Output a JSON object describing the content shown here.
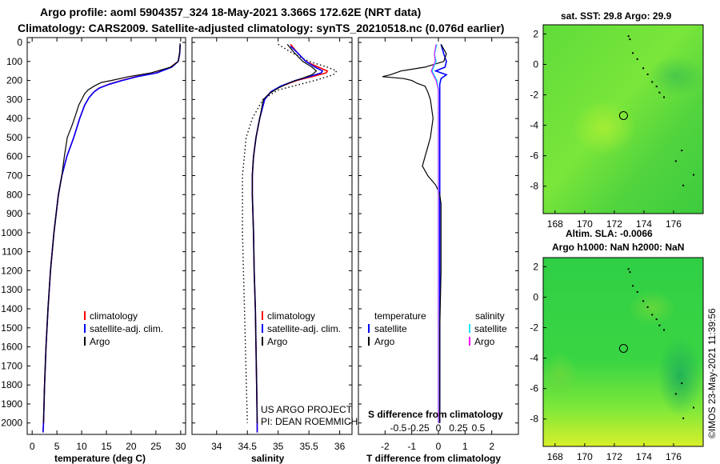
{
  "header": {
    "title_line1": "Argo profile: aoml 5904357_324 18-May-2021 3.366S 172.62E (NRT data)",
    "title_line2": "Climatology: CARS2009. Satellite-adjusted climatology: synTS_20210518.nc (0.076d earlier)"
  },
  "colors": {
    "climatology": "#ff0000",
    "satellite": "#0000ff",
    "argo": "#000000",
    "salinity_satellite": "#00e5ff",
    "salinity_argo": "#ff00ff"
  },
  "depth_ticks": [
    "0",
    "100",
    "200",
    "300",
    "400",
    "500",
    "600",
    "700",
    "800",
    "900",
    "1000",
    "1100",
    "1200",
    "1300",
    "1400",
    "1500",
    "1600",
    "1700",
    "1800",
    "1900",
    "2000"
  ],
  "chart_data": [
    {
      "type": "line",
      "name": "temperature",
      "xlabel": "temperature (deg C)",
      "ylabel": "",
      "xlim": [
        -1,
        31
      ],
      "ylim": [
        2060,
        0
      ],
      "xticks": [
        "0",
        "5",
        "10",
        "15",
        "20",
        "25",
        "30"
      ],
      "legend": [
        "climatology",
        "satellite-adj. clim.",
        "Argo"
      ],
      "series": [
        {
          "name": "climatology",
          "depth": [
            10,
            60,
            100,
            130,
            160,
            180,
            200,
            220,
            240,
            260,
            290,
            330,
            400,
            500,
            600,
            700,
            800,
            1000,
            1200,
            1400,
            1600,
            1800,
            2000,
            2050
          ],
          "values": [
            29.9,
            29.8,
            29.5,
            28.0,
            25.0,
            21.0,
            18.0,
            15.5,
            13.5,
            12.5,
            11.5,
            10.6,
            9.6,
            8.4,
            7.0,
            6.0,
            5.3,
            4.4,
            3.7,
            3.2,
            2.8,
            2.5,
            2.3,
            2.2
          ]
        },
        {
          "name": "satellite-adj. clim.",
          "depth": [
            10,
            60,
            100,
            130,
            160,
            180,
            200,
            220,
            240,
            260,
            290,
            330,
            400,
            500,
            600,
            700,
            800,
            1000,
            1200,
            1400,
            1600,
            1800,
            2000,
            2050
          ],
          "values": [
            29.9,
            29.8,
            29.5,
            28.2,
            25.2,
            21.2,
            18.2,
            15.6,
            13.6,
            12.5,
            11.5,
            10.6,
            9.6,
            8.4,
            7.0,
            6.0,
            5.3,
            4.4,
            3.7,
            3.2,
            2.8,
            2.5,
            2.3,
            2.2
          ]
        },
        {
          "name": "Argo",
          "depth": [
            5,
            50,
            100,
            130,
            160,
            180,
            200,
            210,
            230,
            250,
            270,
            300,
            330,
            380,
            440,
            500,
            600,
            700,
            800,
            1000,
            1200,
            1400,
            1600,
            1800,
            2000
          ],
          "values": [
            29.9,
            29.8,
            29.5,
            28.0,
            24.0,
            19.5,
            16.0,
            14.0,
            12.5,
            11.3,
            10.6,
            10.0,
            9.4,
            8.8,
            8.0,
            7.1,
            6.5,
            6.0,
            5.3,
            4.4,
            3.7,
            3.2,
            2.8,
            2.5,
            2.3
          ]
        }
      ]
    },
    {
      "type": "line",
      "name": "salinity",
      "xlabel": "salinity",
      "xlim": [
        33.6,
        36.2
      ],
      "ylim": [
        2060,
        0
      ],
      "xticks": [
        "34",
        "34.5",
        "35",
        "35.5",
        "36"
      ],
      "legend": [
        "climatology",
        "satellite-adj. clim.",
        "Argo"
      ],
      "annotation": [
        "US ARGO PROJECT",
        "PI: DEAN ROEMMICH"
      ],
      "series": [
        {
          "name": "climatology",
          "depth": [
            10,
            50,
            100,
            130,
            150,
            160,
            180,
            200,
            230,
            260,
            300,
            400,
            500,
            600,
            700,
            800,
            1000,
            1200,
            1400,
            1600,
            1800,
            2000,
            2050
          ],
          "values": [
            35.2,
            35.3,
            35.45,
            35.65,
            35.8,
            35.78,
            35.55,
            35.3,
            35.05,
            34.88,
            34.78,
            34.7,
            34.64,
            34.6,
            34.58,
            34.58,
            34.6,
            34.61,
            34.63,
            34.64,
            34.65,
            34.66,
            34.66
          ]
        },
        {
          "name": "satellite-adj. clim.",
          "depth": [
            20,
            50,
            100,
            130,
            150,
            160,
            180,
            200,
            230,
            260,
            300,
            400,
            500,
            600,
            700,
            800,
            1000,
            1200,
            1400,
            1600,
            1800,
            2000,
            2050
          ],
          "values": [
            35.2,
            35.3,
            35.45,
            35.6,
            35.72,
            35.7,
            35.5,
            35.28,
            35.04,
            34.88,
            34.78,
            34.7,
            34.64,
            34.6,
            34.58,
            34.58,
            34.6,
            34.61,
            34.63,
            34.64,
            34.65,
            34.66,
            34.66
          ]
        },
        {
          "name": "Argo",
          "depth": [
            10,
            50,
            100,
            130,
            150,
            170,
            190,
            210,
            240,
            270,
            300,
            400,
            500,
            600,
            700,
            800,
            1000,
            1200,
            1400,
            1600,
            1800,
            2000
          ],
          "values": [
            35.15,
            35.25,
            35.4,
            35.55,
            35.62,
            35.55,
            35.38,
            35.2,
            35.0,
            34.85,
            34.76,
            34.7,
            34.64,
            34.6,
            34.58,
            34.58,
            34.6,
            34.61,
            34.63,
            34.64,
            34.65,
            34.66
          ]
        },
        {
          "name": "climatology std",
          "depth": [
            10,
            50,
            100,
            130,
            150,
            170,
            200,
            250,
            300,
            400,
            500,
            700,
            1000,
            1500,
            2000
          ],
          "values": [
            35.0,
            35.2,
            35.5,
            35.8,
            35.95,
            35.9,
            35.6,
            35.0,
            34.75,
            34.58,
            34.48,
            34.42,
            34.42,
            34.46,
            34.5
          ]
        }
      ]
    },
    {
      "type": "line",
      "name": "difference",
      "xlabel": "T difference from climatology",
      "xlabel_top": "S difference from climatology",
      "xlim": [
        -3,
        3
      ],
      "ylim": [
        2060,
        0
      ],
      "xticks": [
        "-2",
        "-1",
        "0",
        "1",
        "2"
      ],
      "xticks_top": [
        "-0.5",
        "-0.25",
        "0",
        "0.25",
        "0.5"
      ],
      "legend_left_title": "temperature",
      "legend_right_title": "salinity",
      "legend_left": [
        "satellite",
        "Argo"
      ],
      "legend_right": [
        "satellite",
        "Argo"
      ],
      "series": [
        {
          "name": "T satellite",
          "depth": [
            10,
            60,
            100,
            130,
            150,
            170,
            190,
            220,
            300,
            600,
            1000,
            1500,
            2000
          ],
          "values": [
            0.1,
            0.2,
            0.3,
            0.25,
            -0.1,
            0.3,
            0.1,
            0.05,
            0.05,
            0.05,
            0.05,
            0.05,
            0.05
          ]
        },
        {
          "name": "T Argo",
          "depth": [
            10,
            60,
            100,
            130,
            150,
            170,
            180,
            190,
            200,
            215,
            230,
            260,
            300,
            400,
            500,
            550,
            600,
            650,
            700,
            750,
            780,
            800,
            850,
            900,
            1000,
            1200,
            1500,
            1800,
            2000
          ],
          "values": [
            0.1,
            0.3,
            0.2,
            -0.5,
            -1.4,
            -1.8,
            -2.1,
            -1.3,
            -1.0,
            -0.8,
            -0.5,
            -0.4,
            -0.3,
            -0.2,
            -0.3,
            -0.4,
            -0.5,
            -0.6,
            -0.4,
            -0.1,
            0.0,
            0.05,
            0.1,
            0.1,
            0.1,
            0.1,
            0.05,
            0.05,
            0.05
          ]
        },
        {
          "name": "S satellite",
          "depth": [
            10,
            60,
            100,
            150,
            200,
            250,
            300,
            500,
            800,
            1200,
            2000
          ],
          "values": [
            -0.02,
            -0.05,
            -0.03,
            -0.08,
            -0.02,
            0.0,
            0.0,
            0.0,
            0.0,
            0.0,
            0.0
          ]
        },
        {
          "name": "S Argo",
          "depth": [
            10,
            60,
            100,
            150,
            200,
            250,
            300,
            500,
            800,
            1200,
            2000
          ],
          "values": [
            -0.03,
            -0.05,
            -0.04,
            -0.09,
            -0.03,
            0.0,
            0.0,
            0.0,
            0.0,
            0.0,
            0.0
          ]
        }
      ]
    },
    {
      "type": "heatmap",
      "name": "sst-map",
      "title": "sat. SST: 29.8 Argo: 29.9",
      "xticks": [
        "168",
        "170",
        "172",
        "174",
        "176"
      ],
      "yticks": [
        "2",
        "0",
        "-2",
        "-4",
        "-6",
        "-8"
      ],
      "xlim": [
        167.2,
        178
      ],
      "ylim": [
        -9.8,
        2.6
      ],
      "argo_position": [
        172.62,
        -3.366
      ]
    },
    {
      "type": "heatmap",
      "name": "sla-map",
      "title": "Altim. SLA: -0.0066",
      "subtitle": "Argo h1000: NaN h2000: NaN",
      "xticks": [
        "168",
        "170",
        "172",
        "174",
        "176"
      ],
      "yticks": [
        "2",
        "0",
        "-2",
        "-4",
        "-6",
        "-8"
      ],
      "xlim": [
        167.2,
        178
      ],
      "ylim": [
        -9.8,
        2.6
      ],
      "argo_position": [
        172.62,
        -3.366
      ]
    }
  ],
  "footer": {
    "copyright": "©IMOS 23-May-2021 11:39:56"
  }
}
